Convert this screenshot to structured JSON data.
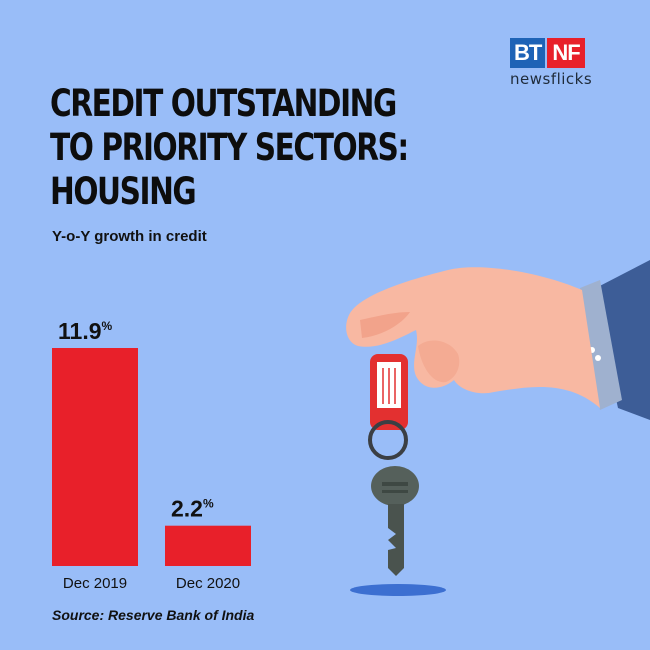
{
  "brand": {
    "logo_left": "BT",
    "logo_right": "NF",
    "tagline": "newsflicks",
    "colors": {
      "blue": "#1e63b6",
      "red": "#e8202a"
    }
  },
  "headline": {
    "lines": [
      "CREDIT OUTSTANDING",
      "TO PRIORITY SECTORS:",
      "HOUSING"
    ]
  },
  "subtitle": "Y-o-Y growth in credit",
  "source": "Source: Reserve Bank of India",
  "chart_data": {
    "type": "bar",
    "title": "CREDIT OUTSTANDING TO PRIORITY SECTORS: HOUSING",
    "subtitle": "Y-o-Y growth in credit",
    "categories": [
      "Dec 2019",
      "Dec 2020"
    ],
    "values": [
      11.9,
      2.2
    ],
    "value_labels": [
      "11.9",
      "2.2"
    ],
    "unit": "%",
    "bar_color": "#e8202a",
    "grid": false,
    "legend": "none"
  },
  "illustration": {
    "description_icon": "hand-holding-key-icon"
  }
}
